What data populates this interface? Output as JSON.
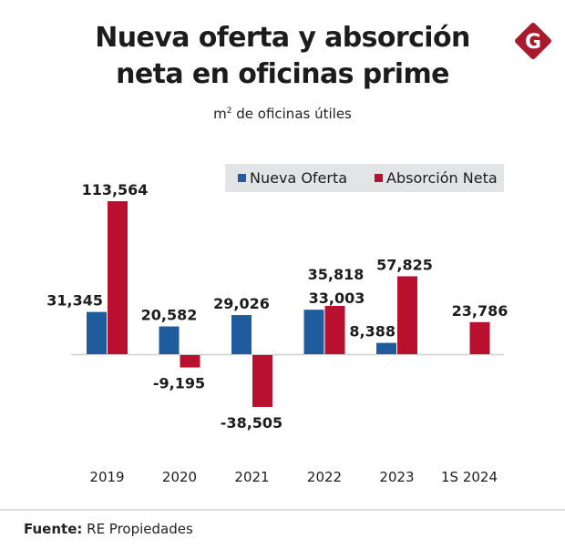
{
  "header": {
    "title_line1": "Nueva oferta y absorción",
    "title_line2": "neta en oficinas prime",
    "subtitle_unit": "m",
    "subtitle_sup": "2",
    "subtitle_rest": " de oficinas útiles",
    "logo_letter": "G"
  },
  "colors": {
    "nueva_oferta": "#1f5c9e",
    "absorcion_neta": "#b8102e",
    "logo": "#a81a2c",
    "legend_bg": "#e3e4e6"
  },
  "footer": {
    "label": "Fuente:",
    "source": " RE Propiedades"
  },
  "chart_data": {
    "type": "bar",
    "title": "Nueva oferta y absorción neta en oficinas prime",
    "subtitle": "m² de oficinas útiles",
    "xlabel": "",
    "ylabel": "",
    "categories": [
      "2019",
      "2020",
      "2021",
      "2022",
      "2023",
      "1S 2024"
    ],
    "series": [
      {
        "name": "Nueva Oferta",
        "color": "#1f5c9e",
        "values": [
          31345,
          20582,
          29026,
          33003,
          8388,
          null
        ],
        "labels": [
          "31,345",
          "20,582",
          "29,026",
          "33,003",
          "8,388",
          ""
        ]
      },
      {
        "name": "Absorción Neta",
        "color": "#b8102e",
        "values": [
          113564,
          -9195,
          -38505,
          35818,
          57825,
          23786
        ],
        "labels": [
          "113,564",
          "-9,195",
          "-38,505",
          "35,818",
          "57,825",
          "23,786"
        ]
      }
    ],
    "ylim": [
      -38505,
      113564
    ],
    "grid": false,
    "legend": "top-right"
  }
}
